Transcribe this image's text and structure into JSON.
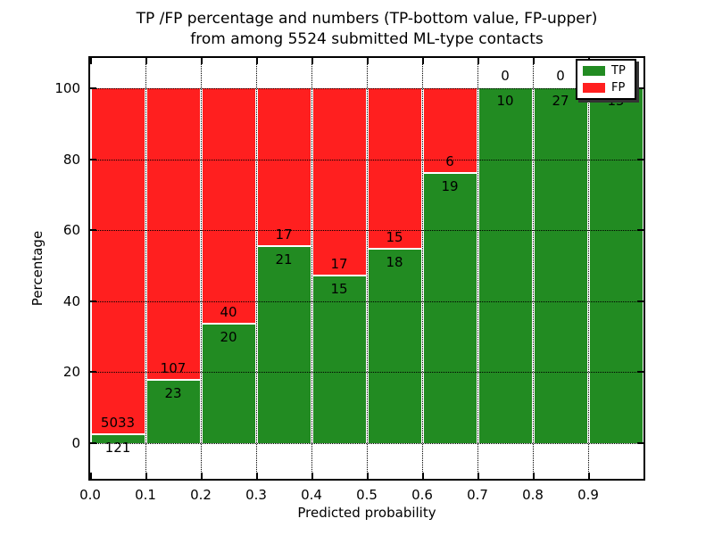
{
  "title": {
    "line1": "TP /FP percentage and numbers (TP-bottom value, FP-upper)",
    "line2": "from among 5524 submitted ML-type contacts"
  },
  "axes": {
    "xlabel": "Predicted probability",
    "ylabel": "Percentage",
    "xtick_labels": [
      "0.0",
      "0.1",
      "0.2",
      "0.3",
      "0.4",
      "0.5",
      "0.6",
      "0.7",
      "0.8",
      "0.9"
    ],
    "ytick_values": [
      0,
      20,
      40,
      60,
      80,
      100
    ]
  },
  "legend": {
    "position": "upper right",
    "items": [
      {
        "label": "TP",
        "color": "#228b22"
      },
      {
        "label": "FP",
        "color": "#ff1f1f"
      }
    ]
  },
  "chart_data": {
    "type": "bar",
    "stacked": true,
    "normalized": "percent of bin total",
    "title": "TP /FP percentage and numbers (TP-bottom value, FP-upper) from among 5524 submitted ML-type contacts",
    "xlabel": "Predicted probability",
    "ylabel": "Percentage",
    "total_contacts": 5524,
    "bin_edges": [
      0.0,
      0.1,
      0.2,
      0.3,
      0.4,
      0.5,
      0.6,
      0.7,
      0.8,
      0.9,
      1.0
    ],
    "categories": [
      "0.0-0.1",
      "0.1-0.2",
      "0.2-0.3",
      "0.3-0.4",
      "0.4-0.5",
      "0.5-0.6",
      "0.6-0.7",
      "0.7-0.8",
      "0.8-0.9",
      "0.9-1.0"
    ],
    "series": [
      {
        "name": "TP",
        "color": "#228b22",
        "counts": [
          121,
          23,
          20,
          21,
          15,
          18,
          19,
          10,
          27,
          15
        ]
      },
      {
        "name": "FP",
        "color": "#ff1f1f",
        "counts": [
          5033,
          107,
          40,
          17,
          17,
          15,
          6,
          0,
          0,
          0
        ]
      }
    ],
    "tp_percent_of_bin": [
      2.3,
      17.7,
      33.3,
      55.3,
      46.9,
      54.5,
      76.0,
      100.0,
      100.0,
      100.0
    ],
    "ylim": [
      -10.5,
      109.5
    ],
    "xlim": [
      0,
      1
    ],
    "grid": "black dotted, x and y",
    "bar_edge_color": "#ffffff",
    "legend_position": "upper right"
  }
}
